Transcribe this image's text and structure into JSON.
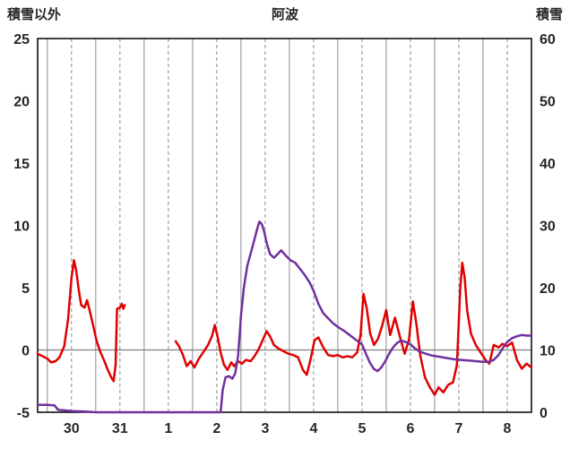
{
  "header": {
    "left_axis_title": "積雪以外",
    "title": "阿波",
    "right_axis_title": "積雪"
  },
  "chart_data": {
    "type": "line",
    "title": "阿波",
    "left_axis": {
      "title": "積雪以外",
      "min": -5,
      "max": 25,
      "ticks": [
        25,
        20,
        15,
        10,
        5,
        0,
        -5
      ]
    },
    "right_axis": {
      "title": "積雪",
      "min": 0,
      "max": 60,
      "ticks": [
        60,
        50,
        40,
        30,
        20,
        10,
        0
      ]
    },
    "x_axis": {
      "min": -0.7,
      "max": 9.5,
      "labels": [
        "30",
        "31",
        "1",
        "2",
        "3",
        "4",
        "5",
        "6",
        "7",
        "8"
      ],
      "label_positions": [
        0,
        1,
        2,
        3,
        4,
        5,
        6,
        7,
        8,
        9
      ],
      "solid_gridlines": [
        -0.5,
        0.5,
        1.5,
        2.5,
        3.5,
        4.5,
        5.5,
        6.5,
        7.5,
        8.5
      ],
      "dashed_gridlines": [
        0,
        1,
        2,
        3,
        4,
        5,
        6,
        7,
        8,
        9
      ]
    },
    "grid_color": "#8c8c8c",
    "zero_line_color": "#808080",
    "border_color": "#000000",
    "text_color": "#262626",
    "series": [
      {
        "name": "積雪以外",
        "axis": "left",
        "color": "#e00000",
        "width": 2.5,
        "segments": [
          [
            [
              -0.7,
              -0.3
            ],
            [
              -0.6,
              -0.5
            ],
            [
              -0.5,
              -0.7
            ],
            [
              -0.42,
              -1.0
            ],
            [
              -0.33,
              -0.9
            ],
            [
              -0.25,
              -0.6
            ],
            [
              -0.15,
              0.3
            ],
            [
              -0.07,
              2.5
            ],
            [
              0.0,
              5.8
            ],
            [
              0.05,
              7.2
            ],
            [
              0.1,
              6.3
            ],
            [
              0.15,
              4.8
            ],
            [
              0.2,
              3.6
            ],
            [
              0.27,
              3.4
            ],
            [
              0.32,
              4.0
            ],
            [
              0.38,
              3.1
            ],
            [
              0.45,
              1.9
            ],
            [
              0.52,
              0.7
            ],
            [
              0.6,
              -0.2
            ],
            [
              0.68,
              -0.9
            ],
            [
              0.75,
              -1.6
            ],
            [
              0.82,
              -2.2
            ],
            [
              0.87,
              -2.5
            ],
            [
              0.91,
              -1.2
            ],
            [
              0.94,
              3.3
            ],
            [
              1.0,
              3.4
            ],
            [
              1.04,
              3.7
            ],
            [
              1.07,
              3.3
            ],
            [
              1.1,
              3.6
            ]
          ],
          [
            [
              2.15,
              0.7
            ],
            [
              2.22,
              0.3
            ],
            [
              2.3,
              -0.4
            ],
            [
              2.38,
              -1.3
            ],
            [
              2.46,
              -0.9
            ],
            [
              2.54,
              -1.4
            ],
            [
              2.63,
              -0.7
            ],
            [
              2.72,
              -0.2
            ],
            [
              2.82,
              0.4
            ],
            [
              2.9,
              1.1
            ],
            [
              2.96,
              2.0
            ],
            [
              3.02,
              1.0
            ],
            [
              3.08,
              -0.2
            ],
            [
              3.15,
              -1.2
            ],
            [
              3.22,
              -1.6
            ],
            [
              3.3,
              -1.0
            ],
            [
              3.36,
              -1.3
            ],
            [
              3.44,
              -0.9
            ],
            [
              3.52,
              -1.1
            ],
            [
              3.6,
              -0.8
            ],
            [
              3.7,
              -0.9
            ],
            [
              3.78,
              -0.5
            ],
            [
              3.87,
              0.1
            ],
            [
              3.95,
              0.8
            ],
            [
              4.03,
              1.5
            ],
            [
              4.1,
              1.1
            ],
            [
              4.18,
              0.4
            ],
            [
              4.28,
              0.1
            ],
            [
              4.38,
              -0.1
            ],
            [
              4.48,
              -0.3
            ],
            [
              4.58,
              -0.4
            ],
            [
              4.68,
              -0.6
            ],
            [
              4.78,
              -1.6
            ],
            [
              4.86,
              -2.0
            ],
            [
              4.94,
              -0.7
            ],
            [
              5.02,
              0.8
            ],
            [
              5.1,
              1.0
            ],
            [
              5.2,
              0.2
            ],
            [
              5.3,
              -0.4
            ],
            [
              5.4,
              -0.5
            ],
            [
              5.5,
              -0.4
            ],
            [
              5.6,
              -0.6
            ],
            [
              5.7,
              -0.5
            ],
            [
              5.8,
              -0.6
            ],
            [
              5.9,
              -0.2
            ],
            [
              5.97,
              1.2
            ],
            [
              6.03,
              4.5
            ],
            [
              6.1,
              3.3
            ],
            [
              6.17,
              1.3
            ],
            [
              6.25,
              0.4
            ],
            [
              6.33,
              0.9
            ],
            [
              6.42,
              2.0
            ],
            [
              6.5,
              3.2
            ],
            [
              6.58,
              1.2
            ],
            [
              6.68,
              2.6
            ],
            [
              6.78,
              1.1
            ],
            [
              6.88,
              -0.3
            ],
            [
              6.97,
              0.8
            ],
            [
              7.05,
              3.9
            ],
            [
              7.12,
              2.2
            ],
            [
              7.2,
              -0.4
            ],
            [
              7.3,
              -2.2
            ],
            [
              7.4,
              -3.0
            ],
            [
              7.5,
              -3.6
            ],
            [
              7.58,
              -3.0
            ],
            [
              7.68,
              -3.4
            ],
            [
              7.78,
              -2.8
            ],
            [
              7.88,
              -2.6
            ],
            [
              7.96,
              -1.2
            ],
            [
              8.03,
              5.0
            ],
            [
              8.07,
              7.0
            ],
            [
              8.12,
              5.8
            ],
            [
              8.17,
              3.2
            ],
            [
              8.25,
              1.3
            ],
            [
              8.35,
              0.4
            ],
            [
              8.45,
              -0.2
            ],
            [
              8.55,
              -0.8
            ],
            [
              8.63,
              -1.1
            ],
            [
              8.72,
              0.4
            ],
            [
              8.82,
              0.2
            ],
            [
              8.9,
              0.5
            ],
            [
              9.0,
              0.3
            ],
            [
              9.1,
              0.6
            ],
            [
              9.2,
              -0.8
            ],
            [
              9.3,
              -1.5
            ],
            [
              9.4,
              -1.1
            ],
            [
              9.5,
              -1.4
            ]
          ]
        ]
      },
      {
        "name": "積雪",
        "axis": "right",
        "color": "#7030a0",
        "width": 2.5,
        "segments": [
          [
            [
              -0.7,
              1.2
            ],
            [
              -0.5,
              1.2
            ],
            [
              -0.35,
              1.1
            ],
            [
              -0.28,
              0.4
            ],
            [
              0.0,
              0.2
            ],
            [
              0.3,
              0.1
            ],
            [
              0.5,
              0
            ],
            [
              1.0,
              0
            ],
            [
              1.5,
              0
            ],
            [
              2.0,
              0
            ],
            [
              2.5,
              0
            ],
            [
              3.0,
              0
            ],
            [
              3.08,
              0
            ],
            [
              3.12,
              3.5
            ],
            [
              3.18,
              5.6
            ],
            [
              3.25,
              5.8
            ],
            [
              3.32,
              5.4
            ],
            [
              3.38,
              6.2
            ],
            [
              3.44,
              9.0
            ],
            [
              3.5,
              15.5
            ],
            [
              3.56,
              20.0
            ],
            [
              3.63,
              23.5
            ],
            [
              3.7,
              25.5
            ],
            [
              3.78,
              27.8
            ],
            [
              3.83,
              29.3
            ],
            [
              3.88,
              30.6
            ],
            [
              3.93,
              30.2
            ],
            [
              3.98,
              29.0
            ],
            [
              4.03,
              27.2
            ],
            [
              4.1,
              25.4
            ],
            [
              4.18,
              24.8
            ],
            [
              4.26,
              25.4
            ],
            [
              4.33,
              26.0
            ],
            [
              4.42,
              25.2
            ],
            [
              4.52,
              24.4
            ],
            [
              4.62,
              24.0
            ],
            [
              4.72,
              23.0
            ],
            [
              4.82,
              22.0
            ],
            [
              4.92,
              20.8
            ],
            [
              5.0,
              19.5
            ],
            [
              5.1,
              17.4
            ],
            [
              5.2,
              15.9
            ],
            [
              5.3,
              15.1
            ],
            [
              5.4,
              14.3
            ],
            [
              5.52,
              13.6
            ],
            [
              5.64,
              13.0
            ],
            [
              5.76,
              12.3
            ],
            [
              5.88,
              11.6
            ],
            [
              6.0,
              10.9
            ],
            [
              6.08,
              9.4
            ],
            [
              6.16,
              8.0
            ],
            [
              6.24,
              7.0
            ],
            [
              6.32,
              6.6
            ],
            [
              6.4,
              7.2
            ],
            [
              6.48,
              8.2
            ],
            [
              6.56,
              9.4
            ],
            [
              6.64,
              10.4
            ],
            [
              6.72,
              11.1
            ],
            [
              6.8,
              11.5
            ],
            [
              6.9,
              11.3
            ],
            [
              7.0,
              10.9
            ],
            [
              7.1,
              10.2
            ],
            [
              7.2,
              9.7
            ],
            [
              7.32,
              9.4
            ],
            [
              7.45,
              9.1
            ],
            [
              7.6,
              8.9
            ],
            [
              7.75,
              8.7
            ],
            [
              7.9,
              8.5
            ],
            [
              8.05,
              8.4
            ],
            [
              8.2,
              8.3
            ],
            [
              8.35,
              8.2
            ],
            [
              8.5,
              8.1
            ],
            [
              8.62,
              8.1
            ],
            [
              8.72,
              8.4
            ],
            [
              8.82,
              9.2
            ],
            [
              8.9,
              10.2
            ],
            [
              9.0,
              11.3
            ],
            [
              9.1,
              11.9
            ],
            [
              9.2,
              12.2
            ],
            [
              9.3,
              12.4
            ],
            [
              9.4,
              12.3
            ],
            [
              9.5,
              12.3
            ]
          ]
        ]
      }
    ]
  }
}
